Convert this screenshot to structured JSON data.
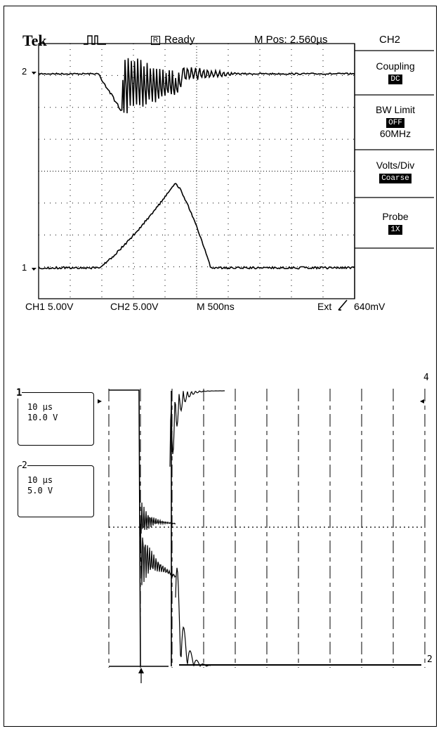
{
  "scope1": {
    "brand": "Tek",
    "status": "Ready",
    "mpos": "M Pos: 2.560µs",
    "channel_header": "CH2",
    "ch_marker_top": "2",
    "ch_marker_bottom": "1",
    "menu": [
      {
        "title": "Coupling",
        "value": "DC",
        "extra": ""
      },
      {
        "title": "BW Limit",
        "value": "OFF",
        "extra": "60MHz"
      },
      {
        "title": "Volts/Div",
        "value": "Coarse",
        "extra": ""
      },
      {
        "title": "Probe",
        "value": "1X",
        "extra": ""
      }
    ],
    "footer": {
      "ch1": "CH1  5.00V",
      "ch2": "CH2  5.00V",
      "time": "M 500ns",
      "trigger": "Ext",
      "level": "640mV"
    }
  },
  "scope2": {
    "ch1": {
      "id": "1",
      "time": "10 µs",
      "volts": "10.0 V"
    },
    "ch2": {
      "id": "2",
      "time": "10 µs",
      "volts": "5.0 V"
    },
    "right_marker_top": "4",
    "right_marker_bottom": "2"
  }
}
